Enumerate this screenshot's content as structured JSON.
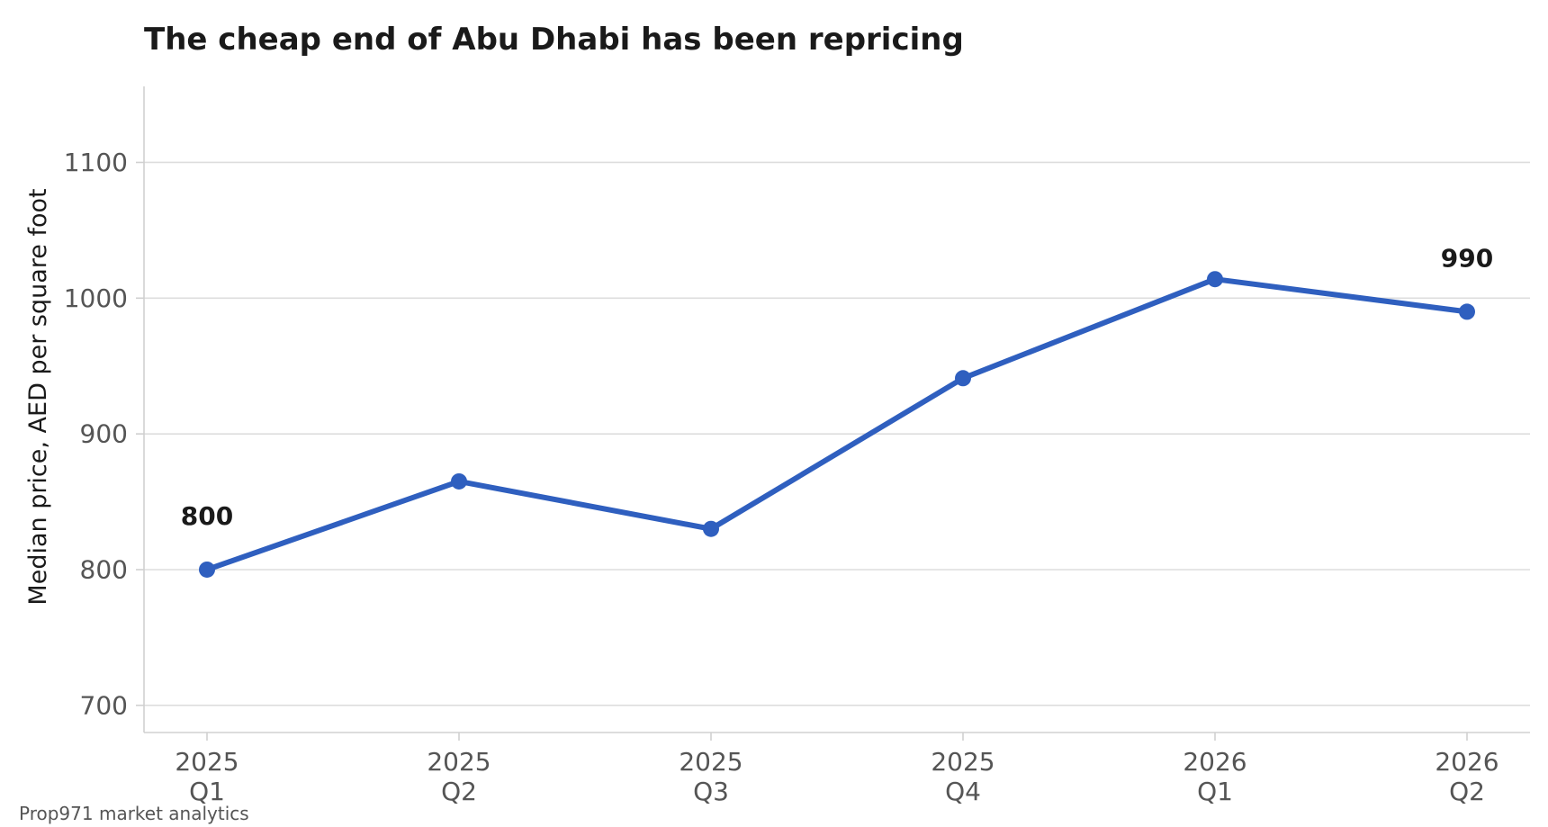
{
  "chart_data": {
    "type": "line",
    "title": "The cheap end of Abu Dhabi has been repricing",
    "xlabel": "",
    "ylabel": "Median price, AED per square foot",
    "categories": [
      [
        "2025",
        "Q1"
      ],
      [
        "2025",
        "Q2"
      ],
      [
        "2025",
        "Q3"
      ],
      [
        "2025",
        "Q4"
      ],
      [
        "2026",
        "Q1"
      ],
      [
        "2026",
        "Q2"
      ]
    ],
    "series": [
      {
        "values": [
          800,
          865,
          830,
          941,
          1014,
          990
        ],
        "color": "#2f5fbf"
      }
    ],
    "data_labels": [
      {
        "index": 0,
        "text": "800"
      },
      {
        "index": 5,
        "text": "990"
      }
    ],
    "ylim": [
      680,
      1156
    ],
    "yticks": [
      700,
      800,
      900,
      1000,
      1100
    ],
    "grid": "horizontal",
    "gridline_color": "#dddddd",
    "axis_color": "#d0d0d0",
    "legend": "none"
  },
  "footer": {
    "source": "Prop971 market analytics"
  }
}
